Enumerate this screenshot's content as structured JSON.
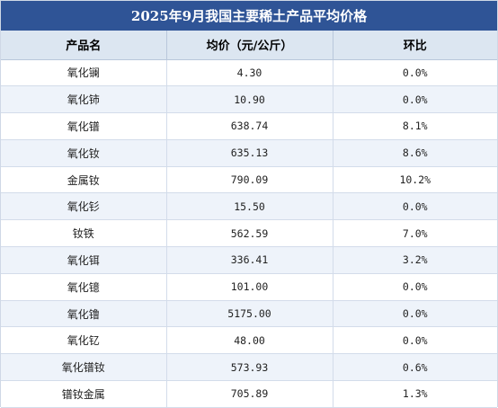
{
  "title": "2025年9月我国主要稀土产品平均价格",
  "table": {
    "headers": [
      "产品名",
      "均价（元/公斤）",
      "环比"
    ],
    "rows": [
      {
        "name": "氧化镧",
        "price": "4.30",
        "mom": "0.0%"
      },
      {
        "name": "氧化铈",
        "price": "10.90",
        "mom": "0.0%"
      },
      {
        "name": "氧化镨",
        "price": "638.74",
        "mom": "8.1%"
      },
      {
        "name": "氧化钕",
        "price": "635.13",
        "mom": "8.6%"
      },
      {
        "name": "金属钕",
        "price": "790.09",
        "mom": "10.2%"
      },
      {
        "name": "氧化钐",
        "price": "15.50",
        "mom": "0.0%"
      },
      {
        "name": "钕铁",
        "price": "562.59",
        "mom": "7.0%"
      },
      {
        "name": "氧化铒",
        "price": "336.41",
        "mom": "3.2%"
      },
      {
        "name": "氧化镱",
        "price": "101.00",
        "mom": "0.0%"
      },
      {
        "name": "氧化镥",
        "price": "5175.00",
        "mom": "0.0%"
      },
      {
        "name": "氧化钇",
        "price": "48.00",
        "mom": "0.0%"
      },
      {
        "name": "氧化镨钕",
        "price": "573.93",
        "mom": "0.6%"
      },
      {
        "name": "镨钕金属",
        "price": "705.89",
        "mom": "1.3%"
      }
    ]
  }
}
